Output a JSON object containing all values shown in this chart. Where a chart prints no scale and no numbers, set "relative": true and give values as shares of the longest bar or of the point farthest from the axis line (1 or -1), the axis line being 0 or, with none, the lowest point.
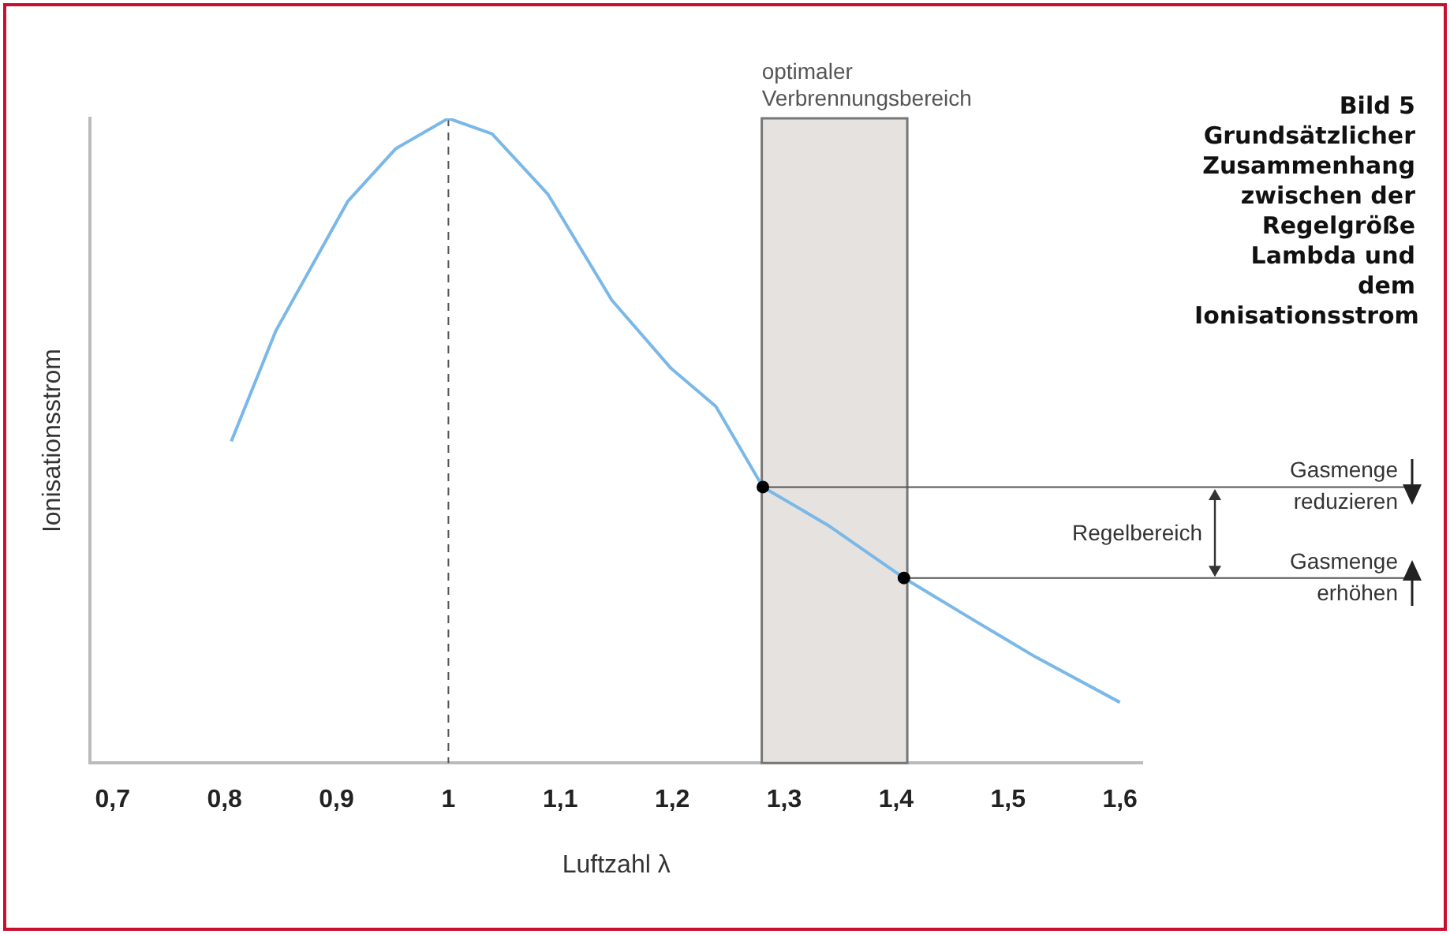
{
  "chart_data": {
    "type": "line",
    "title": "Bild 5 Grundsätzlicher Zusammenhang zwischen der Regelgröße Lambda und dem Ionisationsstrom",
    "xlabel": "Luftzahl λ",
    "ylabel": "Ionisationsstrom",
    "relative": true,
    "xlim": [
      0.68,
      1.62
    ],
    "xticks": [
      {
        "value": 0.7,
        "label": "0,7"
      },
      {
        "value": 0.8,
        "label": "0,8"
      },
      {
        "value": 0.9,
        "label": "0,9"
      },
      {
        "value": 1,
        "label": "1"
      },
      {
        "value": 1.1,
        "label": "1,1"
      },
      {
        "value": 1.2,
        "label": "1,2"
      },
      {
        "value": 1.3,
        "label": "1,3"
      },
      {
        "value": 1.4,
        "label": "1,4"
      },
      {
        "value": 1.5,
        "label": "1,5"
      },
      {
        "value": 1.6,
        "label": "1,6"
      }
    ],
    "series": [
      {
        "color": "#7ab8e8",
        "marker": "none",
        "x": [
          0.806,
          0.846,
          0.91,
          0.953,
          1,
          1.039,
          1.089,
          1.146,
          1.199,
          1.239,
          1.281,
          1.339,
          1.407,
          1.467,
          1.524,
          1.6
        ],
        "values": [
          0.499,
          0.671,
          0.871,
          0.953,
          1,
          0.976,
          0.882,
          0.718,
          0.612,
          0.553,
          0.428,
          0.369,
          0.287,
          0.224,
          0.165,
          0.094
        ]
      },
      {
        "type": "scatter",
        "color": "#000000",
        "marker": "circle",
        "x": [
          1.281,
          1.407
        ],
        "values": [
          0.428,
          0.287
        ]
      }
    ],
    "bands": [
      {
        "axis": "x",
        "from": 1.28,
        "to": 1.41,
        "label": "optimaler Verbrennungsbereich",
        "color": "#e6e2df"
      }
    ],
    "ref_lines": [
      {
        "axis": "x",
        "value": 1,
        "line_style": "dashed",
        "color": "#555555"
      },
      {
        "axis": "y",
        "value": 0.428,
        "label": "Gasmenge reduzieren",
        "color": "#555555"
      },
      {
        "axis": "y",
        "value": 0.287,
        "label": "Gasmenge erhöhen",
        "color": "#555555"
      }
    ],
    "annotations": [
      "Regelbereich"
    ],
    "grid": false,
    "legend": false
  }
}
